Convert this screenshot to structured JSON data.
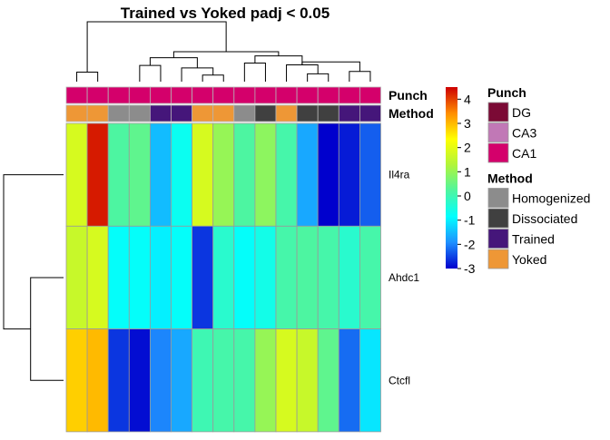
{
  "chart_data": {
    "type": "heatmap",
    "title": "Trained vs Yoked padj < 0.05",
    "rows": [
      "Il4ra",
      "Ahdc1",
      "Ctcfl"
    ],
    "values": [
      [
        1.8,
        4.3,
        0.2,
        0.4,
        -1.5,
        -0.7,
        1.8,
        1.0,
        0.2,
        0.9,
        0.1,
        -1.7,
        -3.0,
        -2.8,
        -2.3
      ],
      [
        1.6,
        1.8,
        -0.8,
        -0.8,
        -1.0,
        -0.8,
        -2.6,
        -0.3,
        -0.8,
        -0.6,
        0.1,
        0.2,
        0.1,
        -0.3,
        0.1
      ],
      [
        2.8,
        3.0,
        -2.6,
        -2.9,
        -2.0,
        -1.7,
        0.0,
        0.1,
        0.1,
        1.0,
        1.8,
        1.6,
        0.4,
        -2.2,
        -1.1
      ]
    ],
    "annotations": {
      "Punch": [
        "CA1",
        "CA1",
        "CA1",
        "CA1",
        "CA1",
        "CA1",
        "CA1",
        "CA1",
        "CA1",
        "CA1",
        "CA1",
        "CA1",
        "CA1",
        "CA1",
        "CA1"
      ],
      "Method": [
        "Yoked",
        "Yoked",
        "Homogenized",
        "Homogenized",
        "Trained",
        "Trained",
        "Yoked",
        "Yoked",
        "Homogenized",
        "Dissociated",
        "Yoked",
        "Dissociated",
        "Dissociated",
        "Trained",
        "Trained"
      ]
    },
    "annotation_labels": [
      "Punch",
      "Method"
    ],
    "col_dendrogram_merges": [
      [
        1,
        2,
        0.16
      ],
      [
        7,
        8,
        0.11
      ],
      [
        12,
        13,
        0.13
      ],
      [
        14,
        15,
        0.17
      ],
      [
        6,
        7.5,
        0.23
      ],
      [
        4,
        5,
        0.27
      ],
      [
        11,
        12.5,
        0.28
      ],
      [
        9,
        10,
        0.31
      ],
      [
        11.75,
        14.5,
        0.33
      ],
      [
        9.5,
        11.75,
        0.43
      ],
      [
        4.5,
        6.75,
        0.4
      ],
      [
        5.625,
        10.625,
        0.5
      ],
      [
        1.5,
        8.125,
        1.0
      ]
    ],
    "row_dendrogram_merges": [
      [
        2,
        3,
        0.55
      ],
      [
        1,
        2.5,
        1.0
      ]
    ],
    "color_scale": {
      "min": -3,
      "max": 4.5,
      "ticks": [
        4,
        3,
        2,
        1,
        0,
        -1,
        -2,
        -3
      ],
      "stops": [
        "#0000cd",
        "#1e90ff",
        "#00ffff",
        "#4ef5a0",
        "#b0f53b",
        "#ffff00",
        "#ff8c00",
        "#cd0000"
      ]
    },
    "legends": [
      {
        "title": "Punch",
        "items": [
          {
            "label": "DG",
            "color": "#7b0a35"
          },
          {
            "label": "CA3",
            "color": "#c178b6"
          },
          {
            "label": "CA1",
            "color": "#d4006b"
          }
        ]
      },
      {
        "title": "Method",
        "items": [
          {
            "label": "Homogenized",
            "color": "#8c8c8c"
          },
          {
            "label": "Dissociated",
            "color": "#404040"
          },
          {
            "label": "Trained",
            "color": "#45167a"
          },
          {
            "label": "Yoked",
            "color": "#ee9736"
          }
        ]
      }
    ]
  }
}
